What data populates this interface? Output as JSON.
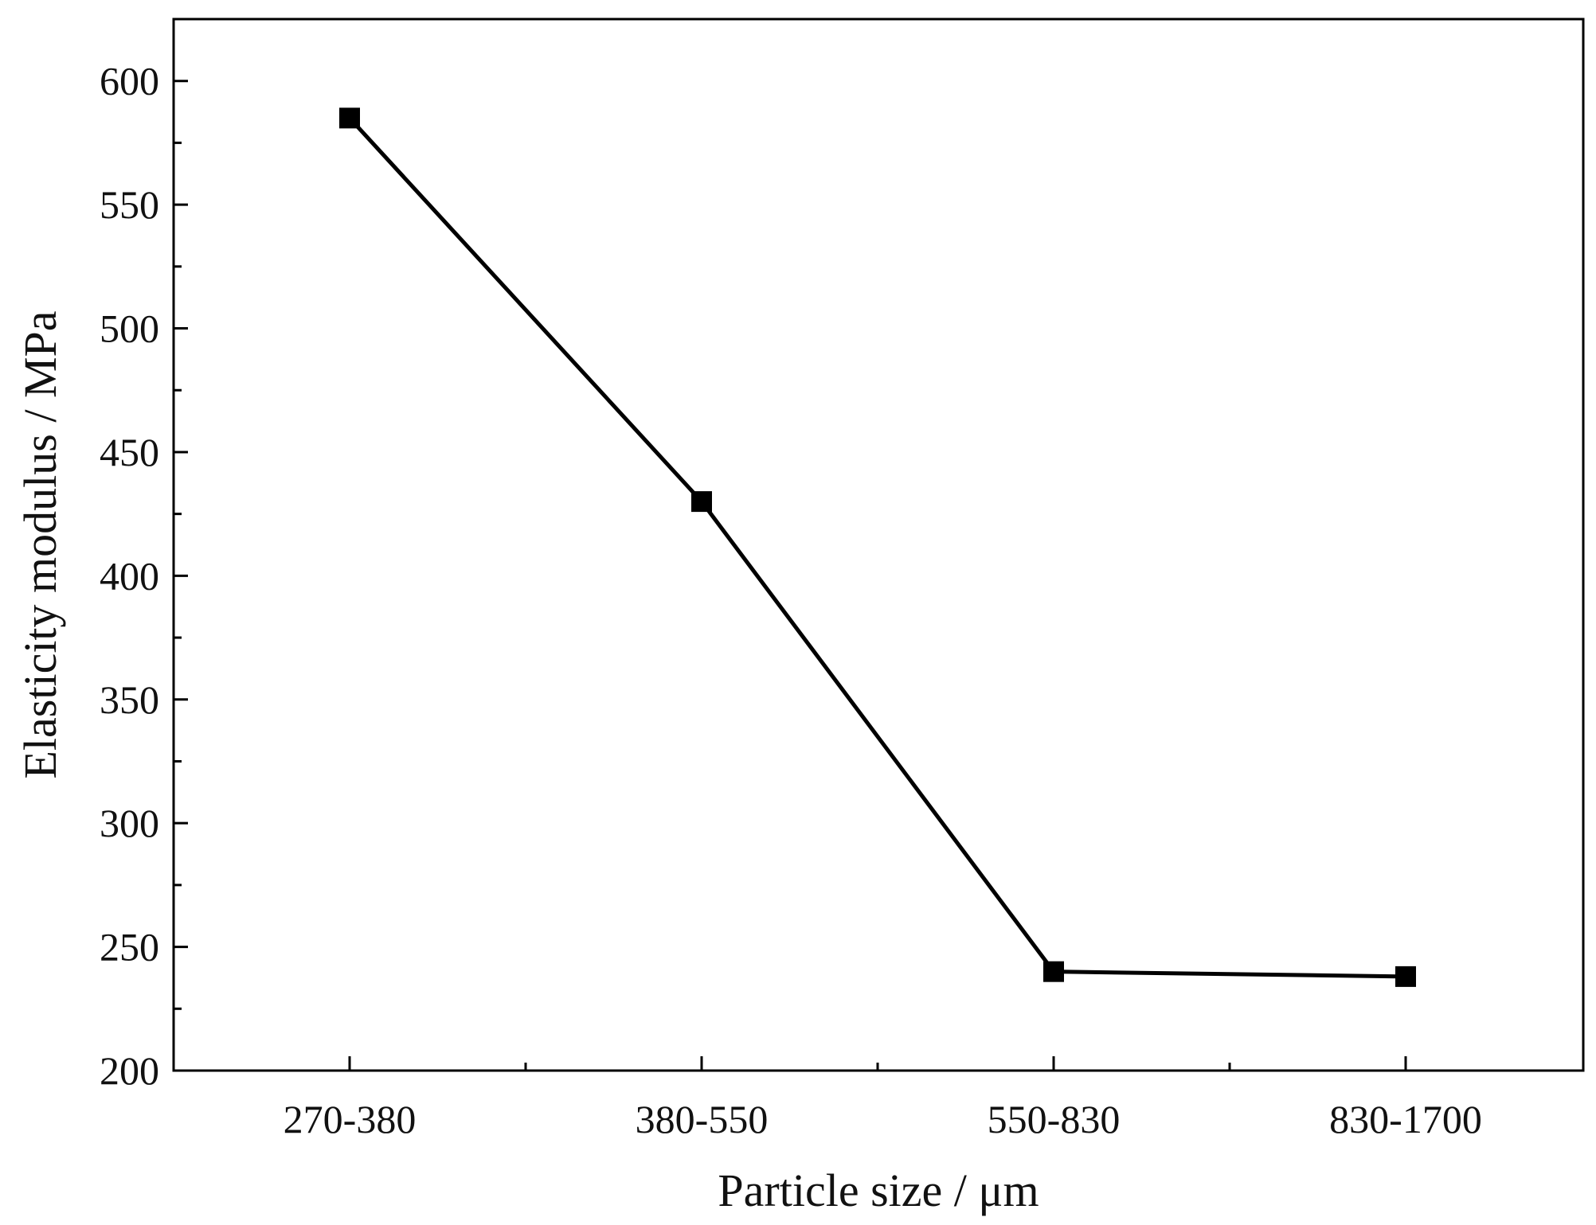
{
  "chart_data": {
    "type": "line",
    "categories": [
      "270-380",
      "380-550",
      "550-830",
      "830-1700"
    ],
    "series": [
      {
        "values": [
          585,
          430,
          240,
          238
        ],
        "color": "#000000",
        "marker": "square"
      }
    ],
    "xlabel": "Particle size / μm",
    "ylabel": "Elasticity modulus / MPa",
    "ylim": [
      200,
      625
    ],
    "yticks": [
      200,
      250,
      300,
      350,
      400,
      450,
      500,
      550,
      600
    ],
    "y_minor_step": 25,
    "grid": false,
    "legend": "none"
  }
}
